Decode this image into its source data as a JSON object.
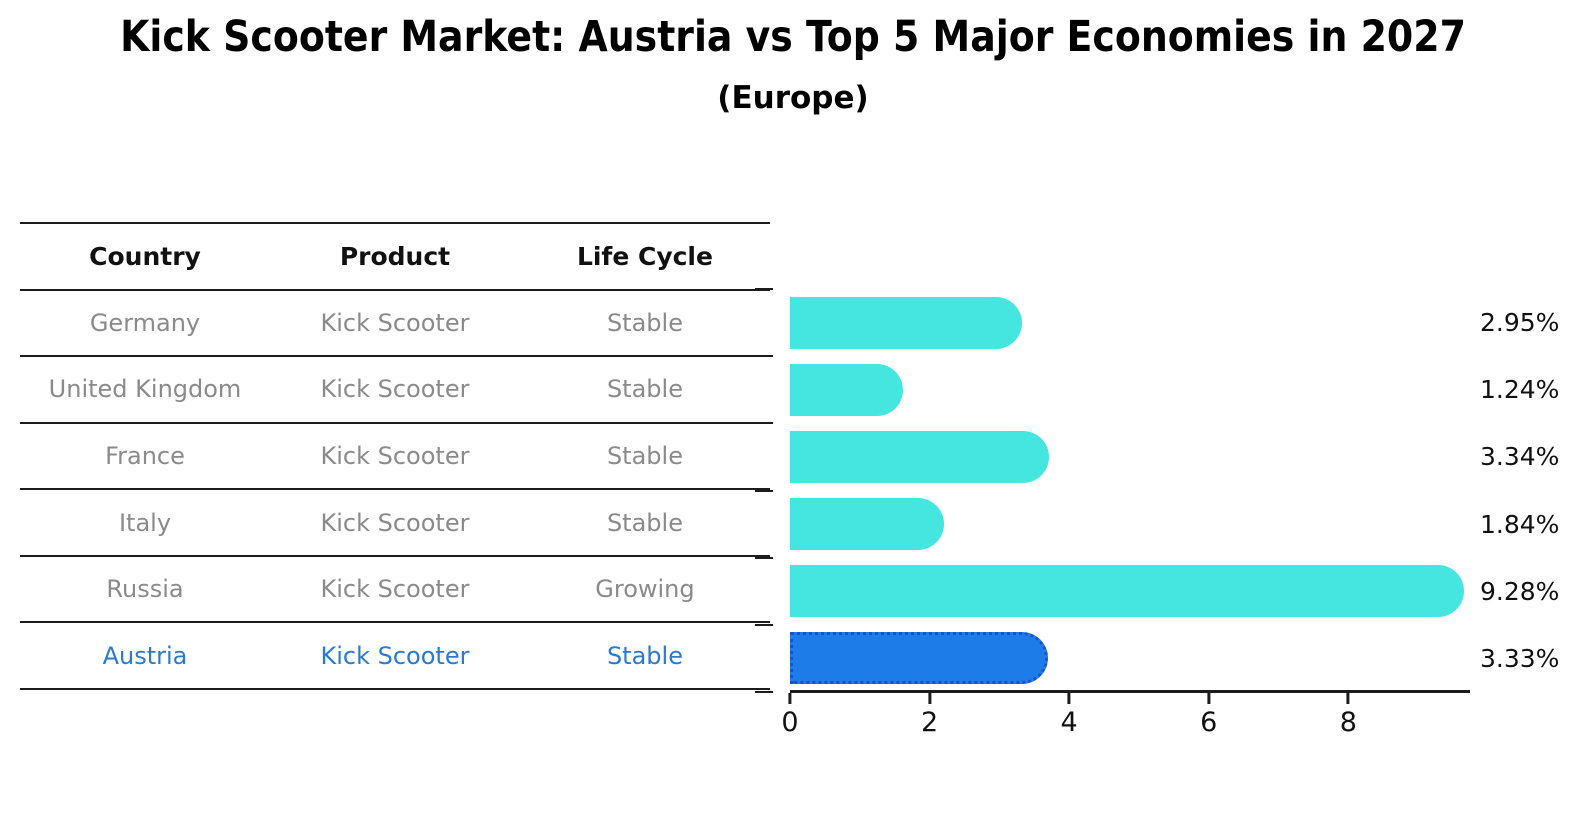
{
  "title": "Kick Scooter Market: Austria vs Top 5 Major Economies in 2027",
  "subtitle": "(Europe)",
  "table": {
    "headers": [
      "Country",
      "Product",
      "Life Cycle"
    ],
    "rows": [
      {
        "country": "Germany",
        "product": "Kick Scooter",
        "life_cycle": "Stable",
        "highlight": false
      },
      {
        "country": "United Kingdom",
        "product": "Kick Scooter",
        "life_cycle": "Stable",
        "highlight": false
      },
      {
        "country": "France",
        "product": "Kick Scooter",
        "life_cycle": "Stable",
        "highlight": false
      },
      {
        "country": "Italy",
        "product": "Kick Scooter",
        "life_cycle": "Stable",
        "highlight": false
      },
      {
        "country": "Russia",
        "product": "Kick Scooter",
        "life_cycle": "Growing",
        "highlight": false
      },
      {
        "country": "Austria",
        "product": "Kick Scooter",
        "life_cycle": "Stable",
        "highlight": true
      }
    ]
  },
  "chart_data": {
    "type": "bar",
    "orientation": "horizontal",
    "categories": [
      "Germany",
      "United Kingdom",
      "France",
      "Italy",
      "Russia",
      "Austria"
    ],
    "values": [
      2.95,
      1.24,
      3.34,
      1.84,
      9.28,
      3.33
    ],
    "value_labels": [
      "2.95%",
      "1.24%",
      "3.34%",
      "1.84%",
      "9.28%",
      "3.33%"
    ],
    "x_ticks": [
      "0",
      "2",
      "4",
      "6",
      "8"
    ],
    "xlim": [
      0,
      9.744
    ],
    "grid": false,
    "legend": false,
    "highlight_index": 5,
    "bar_color": "#45e6df",
    "highlight_bar_color": "#1e7ce8",
    "highlight_border_color": "#1852cc"
  },
  "colors": {
    "row_text": "#8a8a8a",
    "highlight_text": "#2a79d2",
    "header_text": "#111111",
    "line": "#1c1c1c"
  }
}
